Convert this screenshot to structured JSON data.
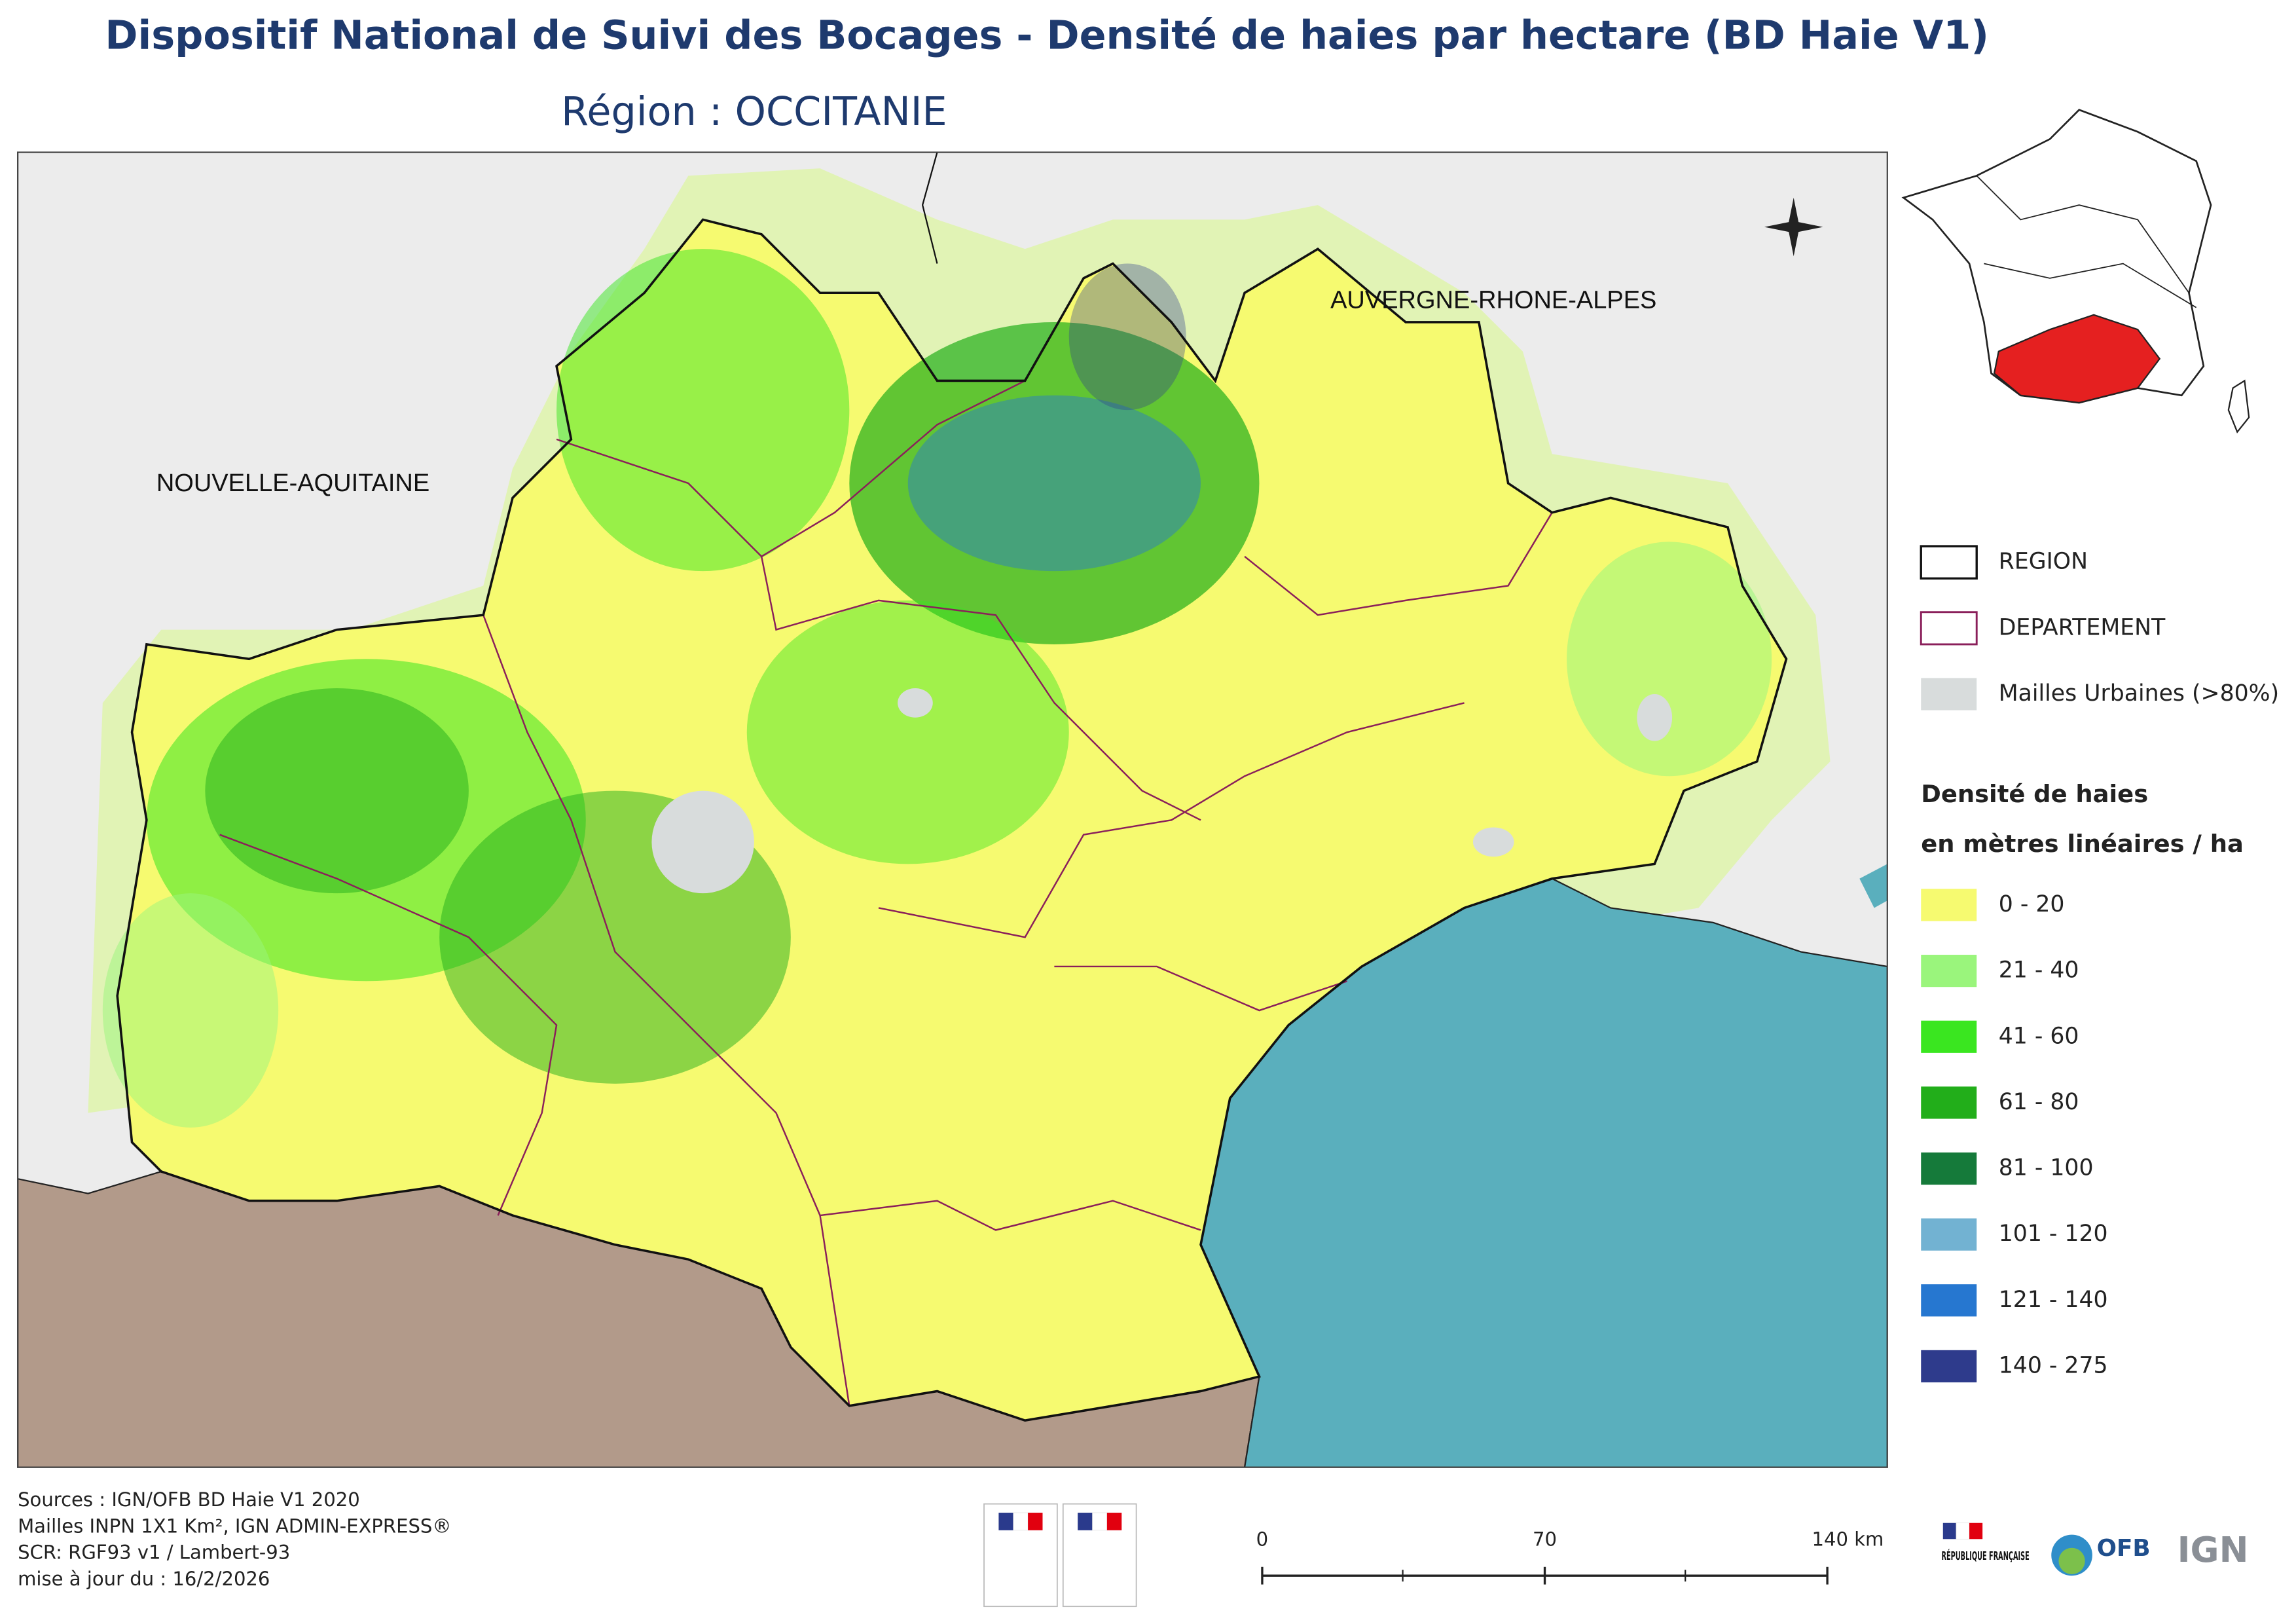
{
  "header": {
    "title": "Dispositif National de Suivi des Bocages - Densité de haies par hectare (BD Haie V1)",
    "subtitle": "Région :  OCCITANIE"
  },
  "map": {
    "labels": [
      "NOUVELLE-AQUITAINE",
      "AUVERGNE-RHONE-ALPES"
    ]
  },
  "legend": {
    "boundaries": [
      {
        "label": "REGION"
      },
      {
        "label": "DEPARTEMENT"
      },
      {
        "label": "Mailles Urbaines (>80%)"
      }
    ],
    "density_title": [
      "Densité de haies",
      "en mètres linéaires / ha"
    ],
    "classes": [
      {
        "label": "0 - 20",
        "color": "#f6fa70"
      },
      {
        "label": "21 - 40",
        "color": "#9af57c"
      },
      {
        "label": "41 - 60",
        "color": "#3ae620"
      },
      {
        "label": "61 - 80",
        "color": "#22ae1a"
      },
      {
        "label": "81 - 100",
        "color": "#157a3a"
      },
      {
        "label": "101 - 120",
        "color": "#72b2d2"
      },
      {
        "label": "121 - 140",
        "color": "#2677d0"
      },
      {
        "label": "140 - 275",
        "color": "#2e3b8c"
      }
    ]
  },
  "scale_bar": {
    "labels": [
      "0",
      "70",
      "140 km"
    ]
  },
  "sources": [
    "Sources : IGN/OFB BD Haie V1 2020",
    "Mailles INPN 1X1 Km²,  IGN ADMIN-EXPRESS®",
    "SCR: RGF93 v1 / Lambert-93",
    "mise à jour du  : 16/2/2026"
  ],
  "logos": {
    "republique": "RÉPUBLIQUE FRANÇAISE",
    "ofb": "OFB",
    "ign": "IGN"
  }
}
